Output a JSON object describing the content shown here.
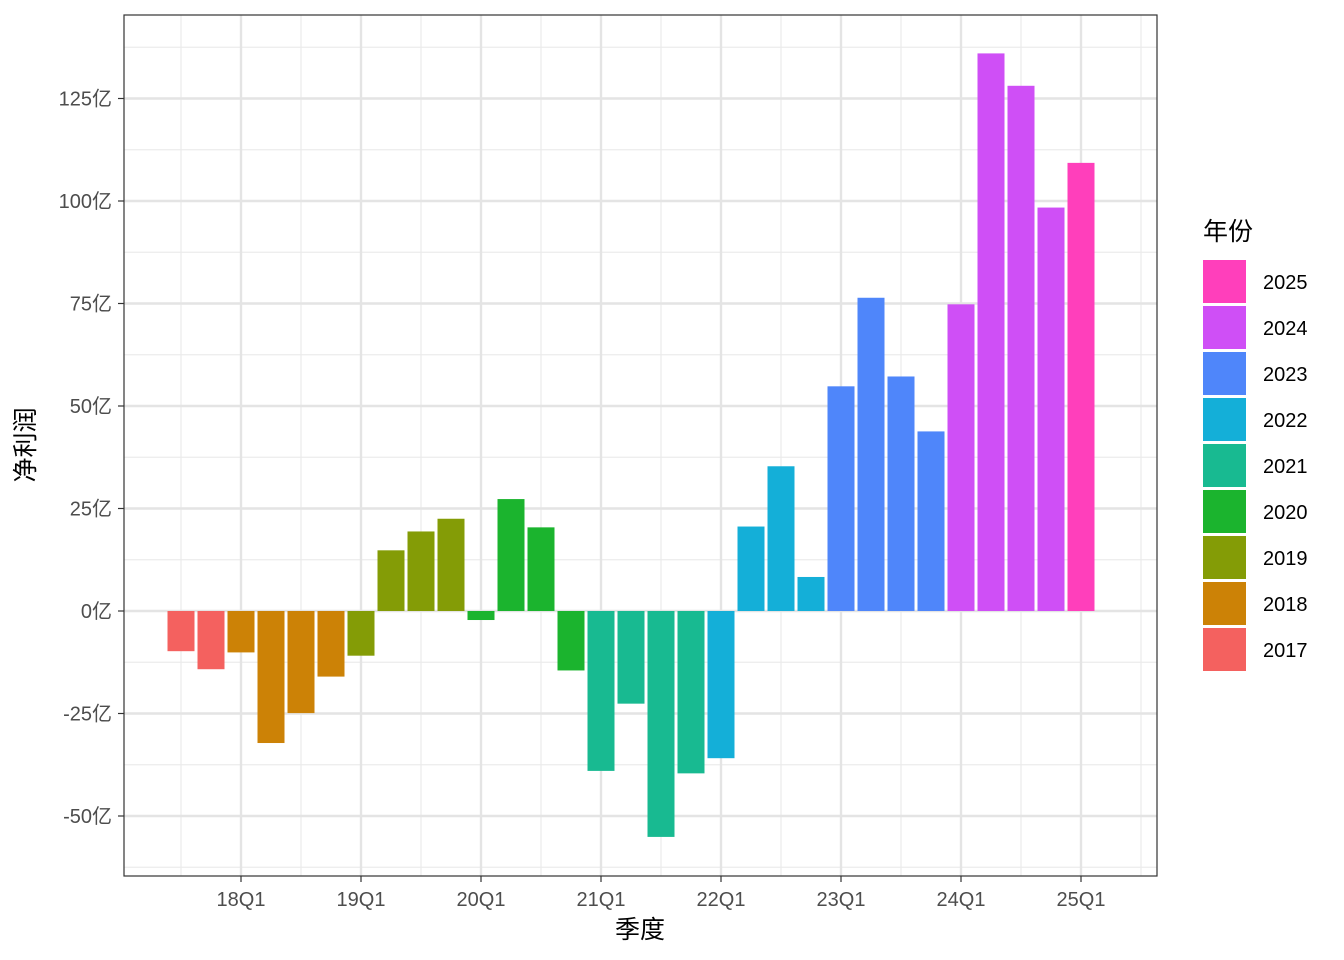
{
  "chart_data": {
    "type": "bar",
    "xlabel": "季度",
    "ylabel": "净利润",
    "ylim": [
      -63,
      146
    ],
    "x_ticks": [
      {
        "quarter_index": 2,
        "label": "18Q1"
      },
      {
        "quarter_index": 6,
        "label": "19Q1"
      },
      {
        "quarter_index": 10,
        "label": "20Q1"
      },
      {
        "quarter_index": 14,
        "label": "21Q1"
      },
      {
        "quarter_index": 18,
        "label": "22Q1"
      },
      {
        "quarter_index": 22,
        "label": "23Q1"
      },
      {
        "quarter_index": 26,
        "label": "24Q1"
      },
      {
        "quarter_index": 30,
        "label": "25Q1"
      }
    ],
    "y_ticks": [
      {
        "value": -50,
        "label": "-50亿"
      },
      {
        "value": -25,
        "label": "-25亿"
      },
      {
        "value": 0,
        "label": "0亿"
      },
      {
        "value": 25,
        "label": "25亿"
      },
      {
        "value": 50,
        "label": "50亿"
      },
      {
        "value": 75,
        "label": "75亿"
      },
      {
        "value": 100,
        "label": "100亿"
      },
      {
        "value": 125,
        "label": "125亿"
      }
    ],
    "bars": [
      {
        "year": "2017",
        "value": -9.8
      },
      {
        "year": "2017",
        "value": -14.2
      },
      {
        "year": "2018",
        "value": -10.1
      },
      {
        "year": "2018",
        "value": -32.2
      },
      {
        "year": "2018",
        "value": -24.9
      },
      {
        "year": "2018",
        "value": -16.0
      },
      {
        "year": "2019",
        "value": -10.9
      },
      {
        "year": "2019",
        "value": 14.8
      },
      {
        "year": "2019",
        "value": 19.4
      },
      {
        "year": "2019",
        "value": 22.5
      },
      {
        "year": "2020",
        "value": -2.2
      },
      {
        "year": "2020",
        "value": 27.3
      },
      {
        "year": "2020",
        "value": 20.4
      },
      {
        "year": "2020",
        "value": -14.5
      },
      {
        "year": "2021",
        "value": -39.0
      },
      {
        "year": "2021",
        "value": -22.6
      },
      {
        "year": "2021",
        "value": -55.1
      },
      {
        "year": "2021",
        "value": -39.6
      },
      {
        "year": "2022",
        "value": -35.9
      },
      {
        "year": "2022",
        "value": 20.6
      },
      {
        "year": "2022",
        "value": 35.3
      },
      {
        "year": "2022",
        "value": 8.3
      },
      {
        "year": "2023",
        "value": 54.8
      },
      {
        "year": "2023",
        "value": 76.4
      },
      {
        "year": "2023",
        "value": 57.2
      },
      {
        "year": "2023",
        "value": 43.8
      },
      {
        "year": "2024",
        "value": 74.8
      },
      {
        "year": "2024",
        "value": 136.0
      },
      {
        "year": "2024",
        "value": 128.1
      },
      {
        "year": "2024",
        "value": 98.4
      },
      {
        "year": "2025",
        "value": 109.3
      }
    ],
    "legend": {
      "title": "年份",
      "position": "right",
      "entries": [
        {
          "label": "2025",
          "color": "#FF3FBB"
        },
        {
          "label": "2024",
          "color": "#CF4FF6"
        },
        {
          "label": "2023",
          "color": "#4F86FA"
        },
        {
          "label": "2022",
          "color": "#14AFD8"
        },
        {
          "label": "2021",
          "color": "#18BA91"
        },
        {
          "label": "2020",
          "color": "#1BB42E"
        },
        {
          "label": "2019",
          "color": "#849C06"
        },
        {
          "label": "2018",
          "color": "#CC8206"
        },
        {
          "label": "2017",
          "color": "#F4615F"
        }
      ]
    },
    "grid": true
  }
}
